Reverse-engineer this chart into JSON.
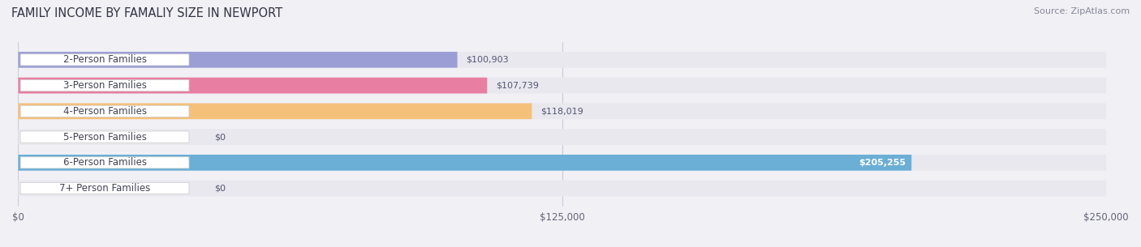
{
  "title": "FAMILY INCOME BY FAMALIY SIZE IN NEWPORT",
  "source": "Source: ZipAtlas.com",
  "categories": [
    "2-Person Families",
    "3-Person Families",
    "4-Person Families",
    "5-Person Families",
    "6-Person Families",
    "7+ Person Families"
  ],
  "values": [
    100903,
    107739,
    118019,
    0,
    205255,
    0
  ],
  "bar_colors": [
    "#9b9ed4",
    "#e87ea1",
    "#f5c07a",
    "#f0a0a8",
    "#6baed6",
    "#c4aed4"
  ],
  "label_colors": [
    "#555577",
    "#555577",
    "#555577",
    "#555577",
    "#ffffff",
    "#555577"
  ],
  "xmax": 250000,
  "xticks": [
    0,
    125000,
    250000
  ],
  "xtick_labels": [
    "$0",
    "$125,000",
    "$250,000"
  ],
  "background_color": "#f0f0f5",
  "bar_background": "#e8e8ee",
  "bar_height": 0.62,
  "title_fontsize": 10.5,
  "label_fontsize": 8.5,
  "value_fontsize": 8.0
}
